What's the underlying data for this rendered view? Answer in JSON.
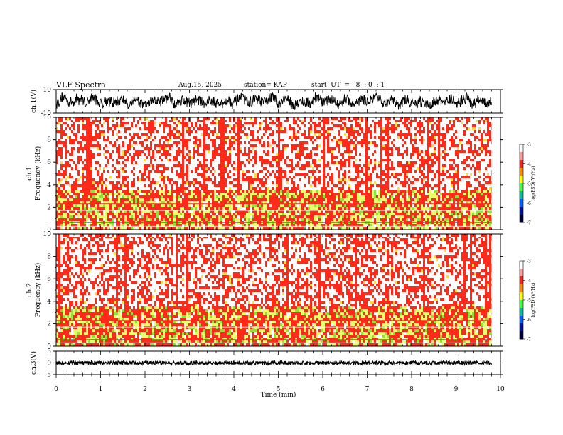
{
  "header": {
    "title": "VLF Spectra",
    "date": "Aug.15, 2025",
    "station": "station= KAP",
    "start": "start  UT  =   8  : 0  : 1"
  },
  "colors": {
    "spectrum_low": "#e8ff6a",
    "spectrum_mid": "#ff2a1a",
    "spectrum_high": "#ffffff"
  },
  "chart_data": [
    {
      "type": "line",
      "name": "waveform-ch1",
      "ylabel": "ch.1(V)",
      "ylim": [
        -10,
        10
      ],
      "y_ticks": [
        "10",
        "-10"
      ],
      "xlim": [
        0,
        10
      ],
      "data_end_min": 9.8
    },
    {
      "type": "heatmap",
      "name": "spectrogram-ch1",
      "ylabel": "ch.1\nFrequency (kHz)",
      "ylim": [
        0,
        10
      ],
      "y_ticks": [
        "0",
        "2",
        "4",
        "6",
        "8",
        "10"
      ],
      "xlim": [
        0,
        10
      ],
      "data_end_min": 9.8,
      "colorbar": {
        "label": "log(PSD)(V²/Hz)",
        "range": [
          -7,
          -3
        ],
        "ticks": [
          "-3",
          "-4",
          "-5",
          "-6",
          "-7"
        ]
      }
    },
    {
      "type": "heatmap",
      "name": "spectrogram-ch2",
      "ylabel": "ch.2\nFrequency (kHz)",
      "ylim": [
        0,
        10
      ],
      "y_ticks": [
        "0",
        "2",
        "4",
        "6",
        "8",
        "10"
      ],
      "xlim": [
        0,
        10
      ],
      "data_end_min": 9.8,
      "colorbar": {
        "label": "log(PSD)(V²/Hz)",
        "range": [
          -7,
          -3
        ],
        "ticks": [
          "-3",
          "-4",
          "-5",
          "-6",
          "-7"
        ]
      }
    },
    {
      "type": "line",
      "name": "waveform-ch3",
      "ylabel": "ch.3(V)",
      "ylim": [
        -5,
        5
      ],
      "y_ticks": [
        "5",
        "0",
        "-5"
      ],
      "xlim": [
        0,
        10
      ],
      "data_end_min": 9.8,
      "xlabel": "Time (min)",
      "x_ticks": [
        "0",
        "1",
        "2",
        "3",
        "4",
        "5",
        "6",
        "7",
        "8",
        "9",
        "10"
      ]
    }
  ]
}
